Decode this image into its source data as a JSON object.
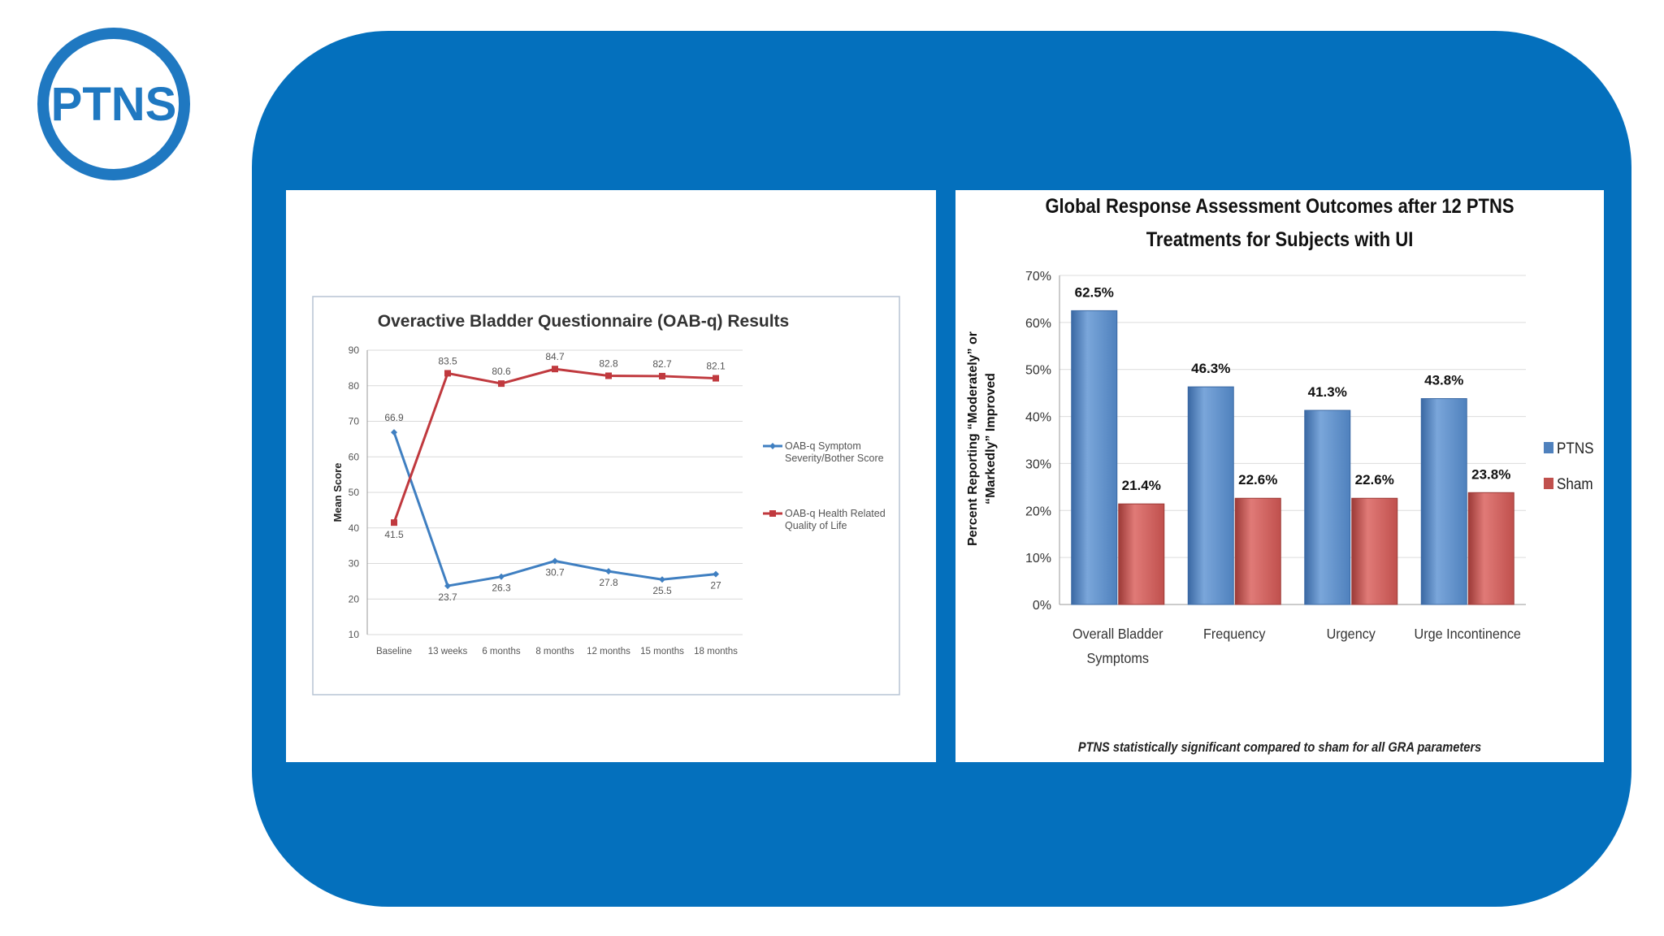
{
  "logo": {
    "text": "PTNS"
  },
  "colors": {
    "panel": "#0470bd",
    "line_symptom": "#3f7fc1",
    "line_qol": "#c0393e",
    "bar_ptns": "#4f81bd",
    "bar_sham": "#c0504d"
  },
  "chart_data": [
    {
      "type": "line",
      "title": "Overactive Bladder Questionnaire (OAB-q) Results",
      "xlabel": "",
      "ylabel": "Mean Score",
      "ylim": [
        10,
        90
      ],
      "yticks": [
        "10",
        "20",
        "30",
        "40",
        "50",
        "60",
        "70",
        "80",
        "90"
      ],
      "categories": [
        "Baseline",
        "13 weeks",
        "6 months",
        "8 months",
        "12 months",
        "15 months",
        "18 months"
      ],
      "series": [
        {
          "name": "OAB-q Symptom Severity/Bother Score",
          "legend_lines": [
            "OAB-q Symptom",
            "Severity/Bother Score"
          ],
          "values": [
            66.9,
            23.7,
            26.3,
            30.7,
            27.8,
            25.5,
            27
          ],
          "labels": [
            "66.9",
            "23.7",
            "26.3",
            "30.7",
            "27.8",
            "25.5",
            "27"
          ]
        },
        {
          "name": "OAB-q Health Related Quality of Life",
          "legend_lines": [
            "OAB-q Health Related",
            "Quality of Life"
          ],
          "values": [
            41.5,
            83.5,
            80.6,
            84.7,
            82.8,
            82.7,
            82.1
          ],
          "labels": [
            "41.5",
            "83.5",
            "80.6",
            "84.7",
            "82.8",
            "82.7",
            "82.1"
          ]
        }
      ]
    },
    {
      "type": "bar",
      "title": "Global Response Assessment Outcomes after 12 PTNS Treatments for Subjects with UI",
      "title_lines": [
        "Global Response Assessment Outcomes after 12 PTNS",
        "Treatments for Subjects with UI"
      ],
      "ylabel": "Percent Reporting “Moderately” or “Markedly” Improved",
      "ylabel_lines": [
        "Percent Reporting “Moderately” or",
        "“Markedly” Improved"
      ],
      "ylim": [
        0,
        70
      ],
      "yticks": [
        "0%",
        "10%",
        "20%",
        "30%",
        "40%",
        "50%",
        "60%",
        "70%"
      ],
      "categories": [
        "Overall Bladder Symptoms",
        "Frequency",
        "Urgency",
        "Urge Incontinence"
      ],
      "category_lines": [
        [
          "Overall Bladder",
          "Symptoms"
        ],
        [
          "Frequency"
        ],
        [
          "Urgency"
        ],
        [
          "Urge Incontinence"
        ]
      ],
      "series": [
        {
          "name": "PTNS",
          "values": [
            62.5,
            46.3,
            41.3,
            43.8
          ],
          "labels": [
            "62.5%",
            "46.3%",
            "41.3%",
            "43.8%"
          ]
        },
        {
          "name": "Sham",
          "values": [
            21.4,
            22.6,
            22.6,
            23.8
          ],
          "labels": [
            "21.4%",
            "22.6%",
            "22.6%",
            "23.8%"
          ]
        }
      ],
      "footnote": "PTNS statistically significant compared to sham for all GRA parameters"
    }
  ]
}
